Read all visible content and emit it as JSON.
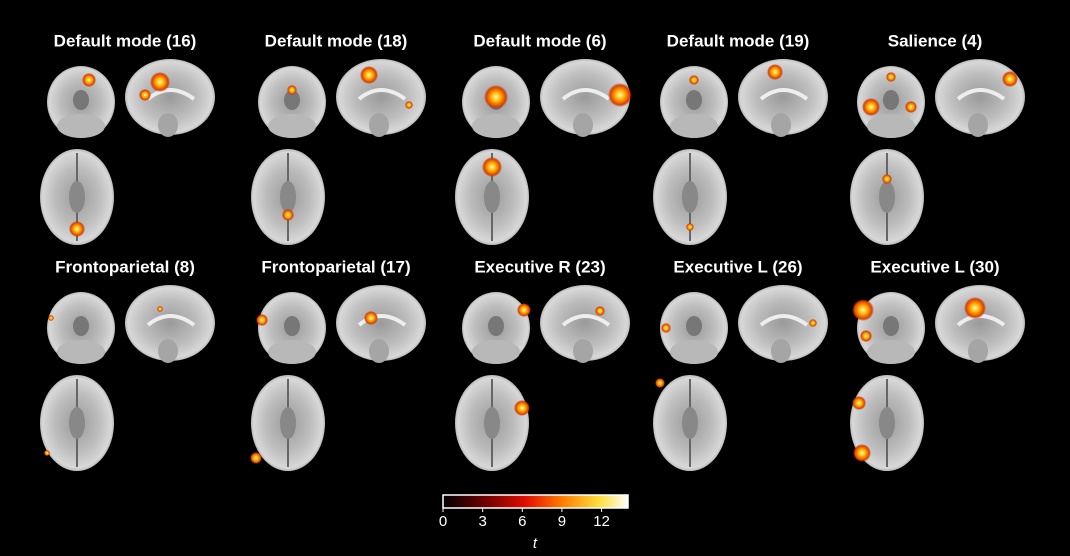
{
  "panels": [
    {
      "title": "Default mode (16)"
    },
    {
      "title": "Default mode (18)"
    },
    {
      "title": "Default mode (6)"
    },
    {
      "title": "Default mode (19)"
    },
    {
      "title": "Salience (4)"
    },
    {
      "title": "Frontoparietal (8)"
    },
    {
      "title": "Frontoparietal (17)"
    },
    {
      "title": "Executive R (23)"
    },
    {
      "title": "Executive L (26)"
    },
    {
      "title": "Executive L (30)"
    }
  ],
  "colorbar": {
    "lim": [
      0,
      14
    ],
    "ticks": [
      0,
      3,
      6,
      9,
      12
    ],
    "label": "t"
  }
}
